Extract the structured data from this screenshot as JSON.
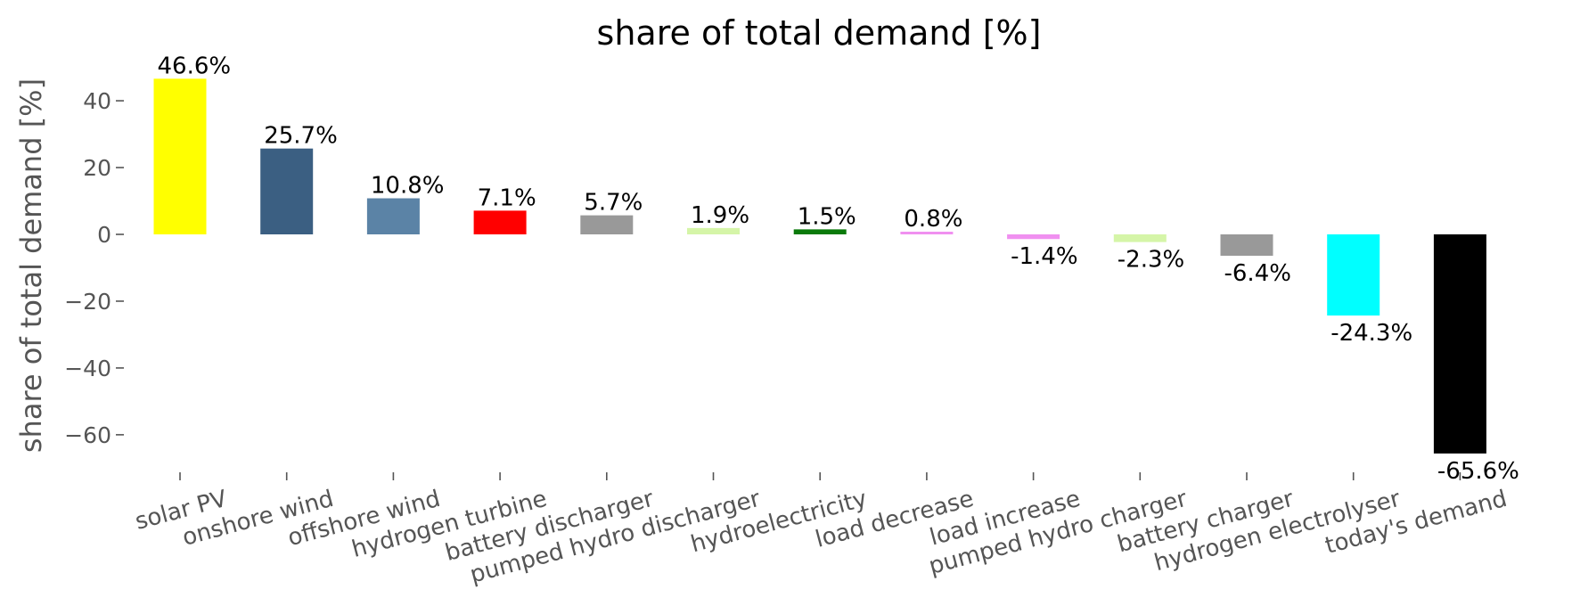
{
  "chart_data": {
    "type": "bar",
    "title": "share of total demand [%]",
    "xlabel": "",
    "ylabel": "share of total demand [%]",
    "ylim": [
      -72,
      50
    ],
    "yticks": [
      40,
      20,
      0,
      -20,
      -40,
      -60
    ],
    "ytick_labels": [
      "40",
      "20",
      "0",
      "−20",
      "−40",
      "−60"
    ],
    "grid": false,
    "legend": "none",
    "categories": [
      "solar PV",
      "onshore wind",
      "offshore wind",
      "hydrogen turbine",
      "battery discharger",
      "pumped hydro discharger",
      "hydroelectricity",
      "load decrease",
      "load increase",
      "pumped hydro charger",
      "battery charger",
      "hydrogen electrolyser",
      "today's demand"
    ],
    "values": [
      46.6,
      25.7,
      10.8,
      7.1,
      5.7,
      1.9,
      1.5,
      0.8,
      -1.4,
      -2.3,
      -6.4,
      -24.3,
      -65.6
    ],
    "data_labels": [
      "46.6%",
      "25.7%",
      "10.8%",
      "7.1%",
      "5.7%",
      "1.9%",
      "1.5%",
      "0.8%",
      "-1.4%",
      "-2.3%",
      "-6.4%",
      "-24.3%",
      "-65.6%"
    ],
    "colors": [
      "#ffff00",
      "#3b5f82",
      "#5b83a6",
      "#ff0000",
      "#999999",
      "#d5f5a8",
      "#0a7a0a",
      "#f090f0",
      "#f090f0",
      "#d5f5a8",
      "#999999",
      "#00ffff",
      "#000000"
    ],
    "x_tick_rotation_deg": 15
  }
}
